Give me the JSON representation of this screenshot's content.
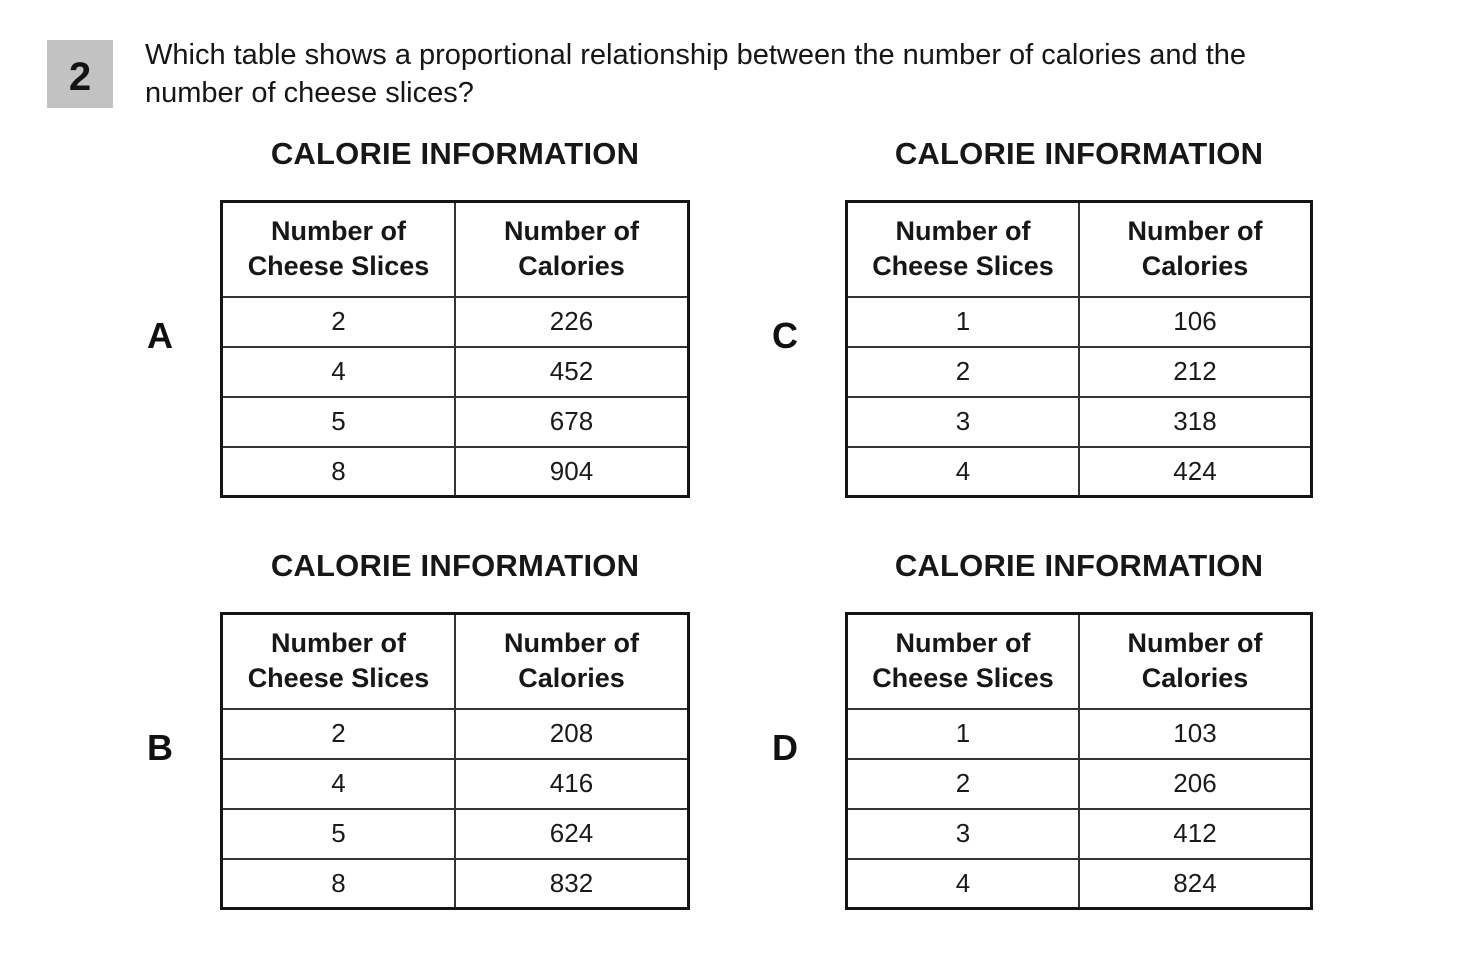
{
  "question": {
    "number": "2",
    "lines": [
      "Which table shows a proportional relationship between the number of calories and the",
      "number of cheese slices?"
    ]
  },
  "options": [
    {
      "label": "A",
      "title": "CALORIE INFORMATION",
      "col_headers": [
        [
          "Number of",
          "Cheese Slices"
        ],
        [
          "Number of",
          "Calories"
        ]
      ],
      "rows": [
        [
          "2",
          "226"
        ],
        [
          "4",
          "452"
        ],
        [
          "5",
          "678"
        ],
        [
          "8",
          "904"
        ]
      ]
    },
    {
      "label": "B",
      "title": "CALORIE INFORMATION",
      "col_headers": [
        [
          "Number of",
          "Cheese Slices"
        ],
        [
          "Number of",
          "Calories"
        ]
      ],
      "rows": [
        [
          "2",
          "208"
        ],
        [
          "4",
          "416"
        ],
        [
          "5",
          "624"
        ],
        [
          "8",
          "832"
        ]
      ]
    },
    {
      "label": "C",
      "title": "CALORIE INFORMATION",
      "col_headers": [
        [
          "Number of",
          "Cheese Slices"
        ],
        [
          "Number of",
          "Calories"
        ]
      ],
      "rows": [
        [
          "1",
          "106"
        ],
        [
          "2",
          "212"
        ],
        [
          "3",
          "318"
        ],
        [
          "4",
          "424"
        ]
      ]
    },
    {
      "label": "D",
      "title": "CALORIE INFORMATION",
      "col_headers": [
        [
          "Number of",
          "Cheese Slices"
        ],
        [
          "Number of",
          "Calories"
        ]
      ],
      "rows": [
        [
          "1",
          "103"
        ],
        [
          "2",
          "206"
        ],
        [
          "3",
          "412"
        ],
        [
          "4",
          "824"
        ]
      ]
    }
  ],
  "colors": {
    "badge_background": "#c2c2c2",
    "text": "#161616",
    "table_border": "#141414"
  }
}
